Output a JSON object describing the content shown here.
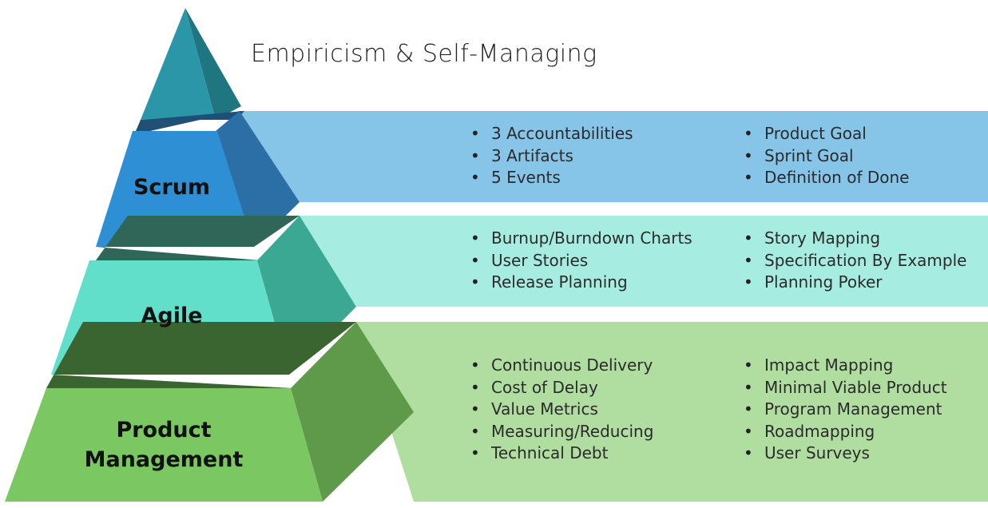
{
  "title": "Empiricism & Self-Managing",
  "colors": {
    "apex_front": "#2a96a8",
    "apex_side": "#1f7580",
    "scrum_band": "#86c4e8",
    "agile_band": "#a7ece0",
    "pm_band": "#b0dea0",
    "scrum_front": "#2e8fd4",
    "agile_front": "#62dfcb",
    "pm_front": "#7bc862"
  },
  "tiers": {
    "scrum": {
      "label": "Scrum",
      "col1": [
        "3 Accountabilities",
        "3 Artifacts",
        "5 Events"
      ],
      "col2": [
        "Product Goal",
        "Sprint Goal",
        "Definition of Done"
      ]
    },
    "agile": {
      "label": "Agile",
      "col1": [
        "Burnup/Burndown Charts",
        "User Stories",
        "Release Planning"
      ],
      "col2": [
        "Story Mapping",
        "Specification By Example",
        "Planning Poker"
      ]
    },
    "pm": {
      "label_line1": "Product",
      "label_line2": "Management",
      "col1": [
        "Continuous Delivery",
        "Cost of Delay",
        "Value Metrics",
        "Measuring/Reducing",
        "Technical Debt"
      ],
      "col2": [
        "Impact Mapping",
        "Minimal Viable Product",
        "Program Management",
        "Roadmapping",
        "User Surveys"
      ]
    }
  }
}
